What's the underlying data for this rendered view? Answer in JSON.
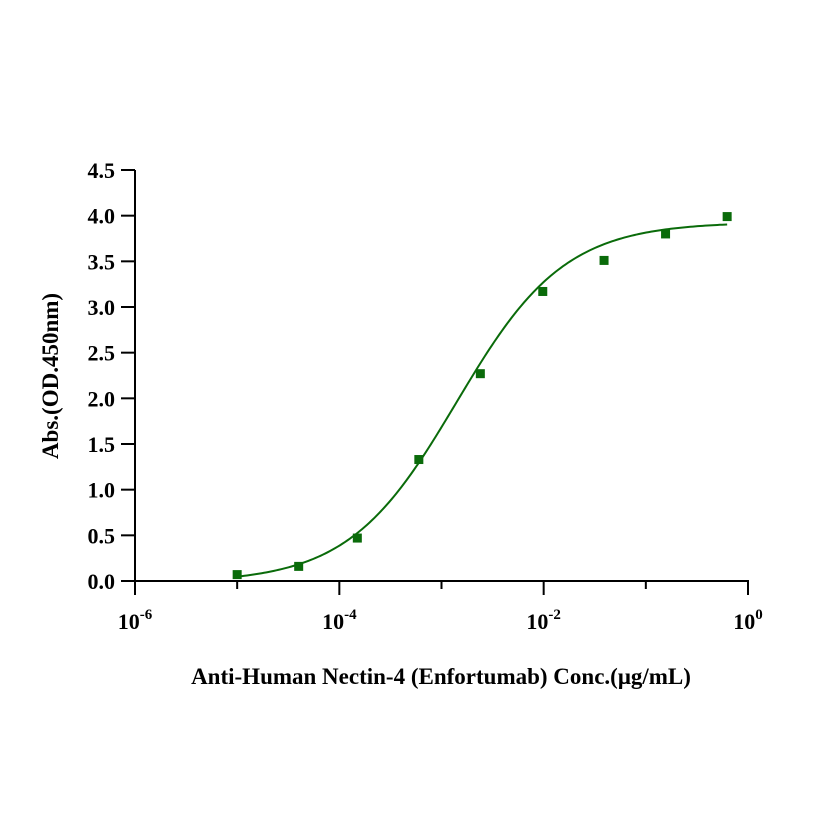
{
  "chart_data": {
    "type": "scatter",
    "title": "",
    "xlabel": "Anti-Human Nectin-4 (Enfortumab) Conc.(μg/mL)",
    "ylabel": "Abs.(OD.450nm)",
    "x_scale": "log10",
    "xlim": [
      1e-06,
      1
    ],
    "ylim": [
      0,
      4.5
    ],
    "x_ticks": [
      {
        "base": "10",
        "exp": "-6"
      },
      {
        "base": "10",
        "exp": "-4"
      },
      {
        "base": "10",
        "exp": "-2"
      },
      {
        "base": "10",
        "exp": "0"
      }
    ],
    "x_tick_values": [
      1e-06,
      0.0001,
      0.01,
      1
    ],
    "y_ticks": [
      "0.0",
      "0.5",
      "1.0",
      "1.5",
      "2.0",
      "2.5",
      "3.0",
      "3.5",
      "4.0",
      "4.5"
    ],
    "y_tick_values": [
      0,
      0.5,
      1,
      1.5,
      2,
      2.5,
      3,
      3.5,
      4,
      4.5
    ],
    "grid": false,
    "legend": "none",
    "color": "#0a6b0a",
    "series": [
      {
        "marker": "square",
        "x": [
          1e-05,
          4e-05,
          0.00015,
          0.0006,
          0.0024,
          0.0098,
          0.039,
          0.156,
          0.625
        ],
        "y": [
          0.07,
          0.16,
          0.47,
          1.33,
          2.27,
          3.17,
          3.51,
          3.8,
          3.99
        ]
      }
    ],
    "fit_curve": {
      "type": "4PL",
      "bottom": -0.02,
      "top": 3.93,
      "ec50": 0.0014,
      "hill": 0.82,
      "x_range": [
        1e-05,
        0.625
      ]
    }
  }
}
